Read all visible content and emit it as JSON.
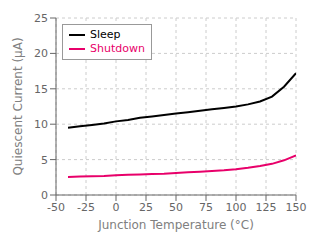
{
  "chart_data": {
    "type": "line",
    "xlabel": "Junction Temperature (°C)",
    "ylabel": "Quiescent Current (µA)",
    "x": [
      -40,
      -30,
      -20,
      -10,
      0,
      10,
      20,
      30,
      40,
      50,
      60,
      70,
      80,
      90,
      100,
      110,
      120,
      130,
      140,
      150
    ],
    "series": [
      {
        "name": "Sleep",
        "color": "#000000",
        "values": [
          9.5,
          9.7,
          9.9,
          10.1,
          10.4,
          10.6,
          10.9,
          11.1,
          11.3,
          11.5,
          11.7,
          11.9,
          12.1,
          12.3,
          12.5,
          12.8,
          13.2,
          13.9,
          15.3,
          17.2
        ]
      },
      {
        "name": "Shutdown",
        "color": "#e8006a",
        "values": [
          2.55,
          2.6,
          2.65,
          2.7,
          2.8,
          2.85,
          2.9,
          2.95,
          3.0,
          3.1,
          3.2,
          3.3,
          3.4,
          3.5,
          3.65,
          3.85,
          4.1,
          4.4,
          4.9,
          5.6
        ]
      }
    ],
    "xlim": [
      -50,
      150
    ],
    "ylim": [
      0,
      25
    ],
    "xticks": [
      -50,
      -25,
      0,
      25,
      50,
      75,
      100,
      125,
      150
    ],
    "yticks": [
      0,
      5,
      10,
      15,
      20,
      25
    ],
    "grid": true,
    "legend": "upper left"
  }
}
